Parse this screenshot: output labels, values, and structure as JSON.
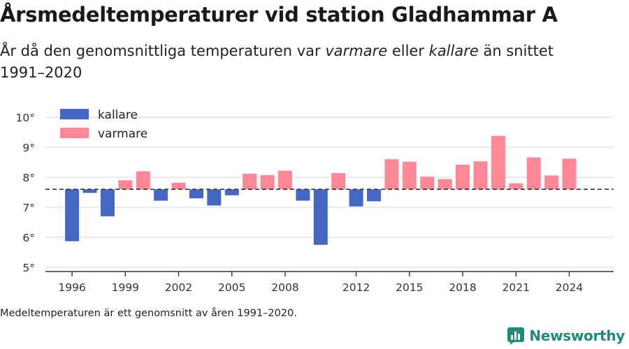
{
  "header": {
    "title": "Årsmedeltemperaturer vid station Gladhammar A",
    "subtitle_before": "År då den genomsnittliga temperaturen var ",
    "subtitle_warm": "varmare",
    "subtitle_middle": " eller ",
    "subtitle_cold": "kallare",
    "subtitle_after": " än snittet 1991–2020"
  },
  "footnote": "Medeltemperaturen är ett genomsnitt av åren 1991–2020.",
  "brand": {
    "name": "Newsworthy",
    "icon": "newsworthy-logo-icon",
    "color": "#1e8a7a"
  },
  "colors": {
    "kallare": "#4466c4",
    "varmare": "#ff8796",
    "grid": "#dddddd",
    "axis": "#333333",
    "reference_line": "#333333"
  },
  "chart_data": {
    "type": "bar",
    "baseline": 7.6,
    "ylim": [
      5,
      10
    ],
    "yticks": [
      "5°",
      "6°",
      "7°",
      "8°",
      "9°",
      "10°"
    ],
    "ytick_values": [
      5,
      6,
      7,
      8,
      9,
      10
    ],
    "xticks": [
      "1996",
      "1999",
      "2002",
      "2005",
      "2008",
      "2012",
      "2015",
      "2018",
      "2021",
      "2024"
    ],
    "xlim": [
      1994.5,
      2026.5
    ],
    "grid": true,
    "legend_position": "top-left",
    "legend": [
      {
        "key": "kallare",
        "label": "kallare"
      },
      {
        "key": "varmare",
        "label": "varmare"
      }
    ],
    "x": [
      1996,
      1997,
      1998,
      1999,
      2000,
      2001,
      2002,
      2003,
      2004,
      2005,
      2006,
      2007,
      2008,
      2009,
      2010,
      2011,
      2012,
      2013,
      2014,
      2015,
      2016,
      2017,
      2018,
      2019,
      2020,
      2021,
      2022,
      2023,
      2024
    ],
    "values": [
      5.87,
      7.48,
      6.7,
      7.9,
      8.2,
      7.22,
      7.82,
      7.3,
      7.06,
      7.4,
      8.12,
      8.07,
      8.22,
      7.22,
      5.75,
      8.14,
      7.03,
      7.2,
      8.6,
      8.52,
      8.02,
      7.94,
      8.42,
      8.53,
      9.38,
      7.8,
      8.66,
      8.06,
      8.62
    ]
  }
}
